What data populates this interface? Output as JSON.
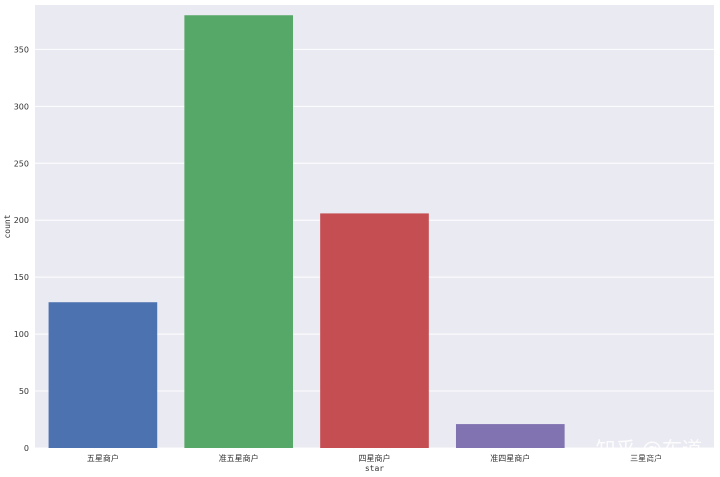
{
  "chart_data": {
    "type": "bar",
    "categories": [
      "五星商户",
      "准五星商户",
      "四星商户",
      "准四星商户",
      "三星商户"
    ],
    "values": [
      128,
      380,
      206,
      21,
      0
    ],
    "xlabel": "star",
    "ylabel": "count",
    "ylim": [
      0,
      389
    ],
    "yticks": [
      0,
      50,
      100,
      150,
      200,
      250,
      300,
      350
    ],
    "grid": true,
    "colors": [
      "#4c72b0",
      "#55a868",
      "#c44e52",
      "#8172b2",
      "#ccb974"
    ],
    "background": "#eaeaf2"
  },
  "watermark": "知乎 @布道"
}
